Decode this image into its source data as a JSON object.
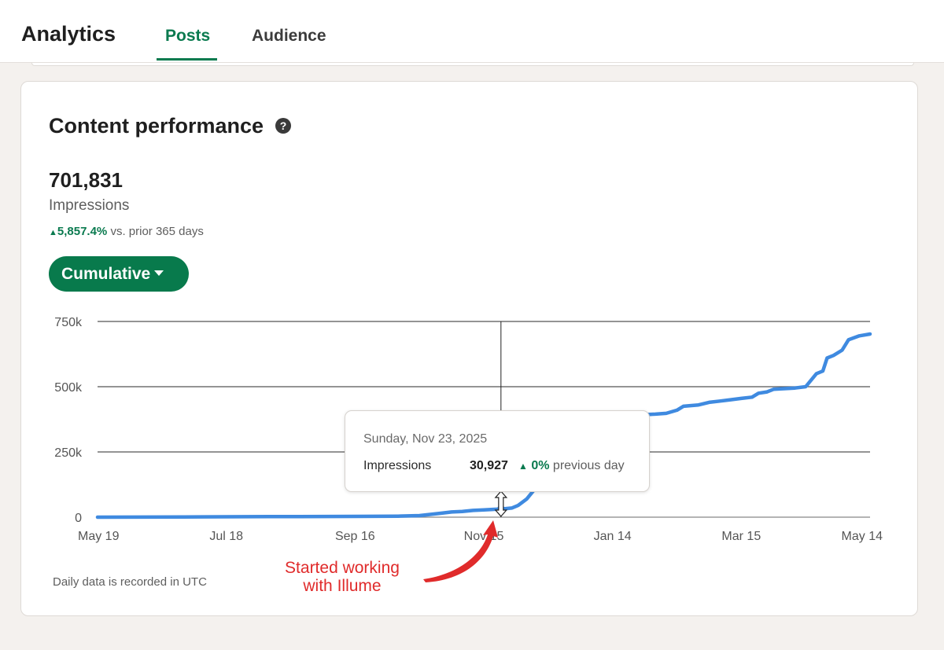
{
  "header": {
    "app_title": "Analytics",
    "tabs": [
      {
        "label": "Posts",
        "active": true
      },
      {
        "label": "Audience",
        "active": false
      }
    ]
  },
  "card": {
    "title": "Content performance",
    "help_icon": "question-circle-icon",
    "total_value": "701,831",
    "metric_label": "Impressions",
    "delta_value": "5,857.4%",
    "delta_text": "vs. prior 365 days",
    "view_dropdown": "Cumulative",
    "footnote": "Daily data is recorded in UTC"
  },
  "tooltip": {
    "date": "Sunday, Nov 23, 2025",
    "metric": "Impressions",
    "value": "30,927",
    "change_value": "0%",
    "change_text": "previous day"
  },
  "annotation": {
    "text_line1": "Started working",
    "text_line2": "with Illume"
  },
  "colors": {
    "accent_green": "#0a7a4f",
    "line_blue": "#3f8ae0",
    "annotation_red": "#e02b2b"
  },
  "chart_data": {
    "type": "line",
    "series": [
      {
        "values": [
          [
            0,
            0
          ],
          [
            40,
            1000
          ],
          [
            80,
            2000
          ],
          [
            120,
            3000
          ],
          [
            140,
            4000
          ],
          [
            150,
            6000
          ],
          [
            160,
            15000
          ],
          [
            165,
            20000
          ],
          [
            170,
            22000
          ],
          [
            175,
            26000
          ],
          [
            180,
            28000
          ],
          [
            185,
            30000
          ],
          [
            188,
            30927
          ],
          [
            193,
            35000
          ],
          [
            196,
            45000
          ],
          [
            200,
            70000
          ],
          [
            205,
            120000
          ],
          [
            210,
            180000
          ],
          [
            215,
            240000
          ],
          [
            220,
            290000
          ],
          [
            225,
            330000
          ],
          [
            230,
            345000
          ],
          [
            237,
            355000
          ],
          [
            240,
            375000
          ],
          [
            245,
            385000
          ],
          [
            250,
            390000
          ],
          [
            255,
            393000
          ],
          [
            260,
            395000
          ],
          [
            265,
            398000
          ],
          [
            270,
            410000
          ],
          [
            273,
            425000
          ],
          [
            280,
            430000
          ],
          [
            285,
            440000
          ],
          [
            290,
            445000
          ],
          [
            295,
            450000
          ],
          [
            300,
            455000
          ],
          [
            305,
            460000
          ],
          [
            308,
            475000
          ],
          [
            312,
            480000
          ],
          [
            315,
            490000
          ],
          [
            325,
            495000
          ],
          [
            330,
            500000
          ],
          [
            335,
            550000
          ],
          [
            338,
            560000
          ],
          [
            340,
            610000
          ],
          [
            343,
            620000
          ],
          [
            347,
            640000
          ],
          [
            350,
            680000
          ],
          [
            355,
            695000
          ],
          [
            360,
            701831
          ]
        ]
      }
    ],
    "x_ticks": [
      "May 19",
      "Jul 18",
      "Sep 16",
      "Nov 15",
      "Jan 14",
      "Mar 15",
      "May 14"
    ],
    "x_tick_days": [
      0,
      60,
      120,
      180,
      240,
      300,
      360
    ],
    "y_ticks": [
      "0",
      "250k",
      "500k",
      "750k"
    ],
    "y_tick_values": [
      0,
      250000,
      500000,
      750000
    ],
    "xlim": [
      0,
      360
    ],
    "ylim": [
      0,
      750000
    ],
    "grid": "horizontal",
    "hover_day": 188
  }
}
